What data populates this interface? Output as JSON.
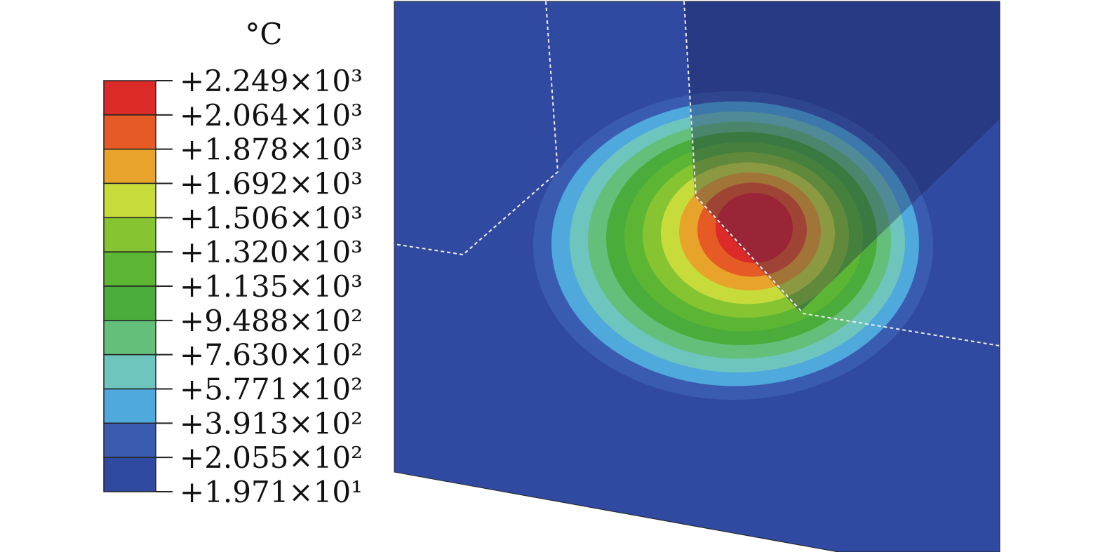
{
  "colorbar": {
    "unit": "°C",
    "ticks": [
      {
        "value": 2249,
        "label": "+2.249×10³"
      },
      {
        "value": 2064,
        "label": "+2.064×10³"
      },
      {
        "value": 1878,
        "label": "+1.878×10³"
      },
      {
        "value": 1692,
        "label": "+1.692×10³"
      },
      {
        "value": 1506,
        "label": "+1.506×10³"
      },
      {
        "value": 1320,
        "label": "+1.320×10³"
      },
      {
        "value": 1135,
        "label": "+1.135×10³"
      },
      {
        "value": 948.8,
        "label": "+9.488×10²"
      },
      {
        "value": 763.0,
        "label": "+7.630×10²"
      },
      {
        "value": 577.1,
        "label": "+5.771×10²"
      },
      {
        "value": 391.3,
        "label": "+3.913×10²"
      },
      {
        "value": 205.5,
        "label": "+2.055×10²"
      },
      {
        "value": 19.71,
        "label": "+1.971×10¹"
      }
    ],
    "colors": [
      "#dc2a28",
      "#e55a25",
      "#e8a32a",
      "#c7dc3b",
      "#86c432",
      "#5db633",
      "#4aac3a",
      "#63bf7a",
      "#6dc5bd",
      "#4fa9dd",
      "#3a5cb0",
      "#2f4aa0"
    ]
  }
}
